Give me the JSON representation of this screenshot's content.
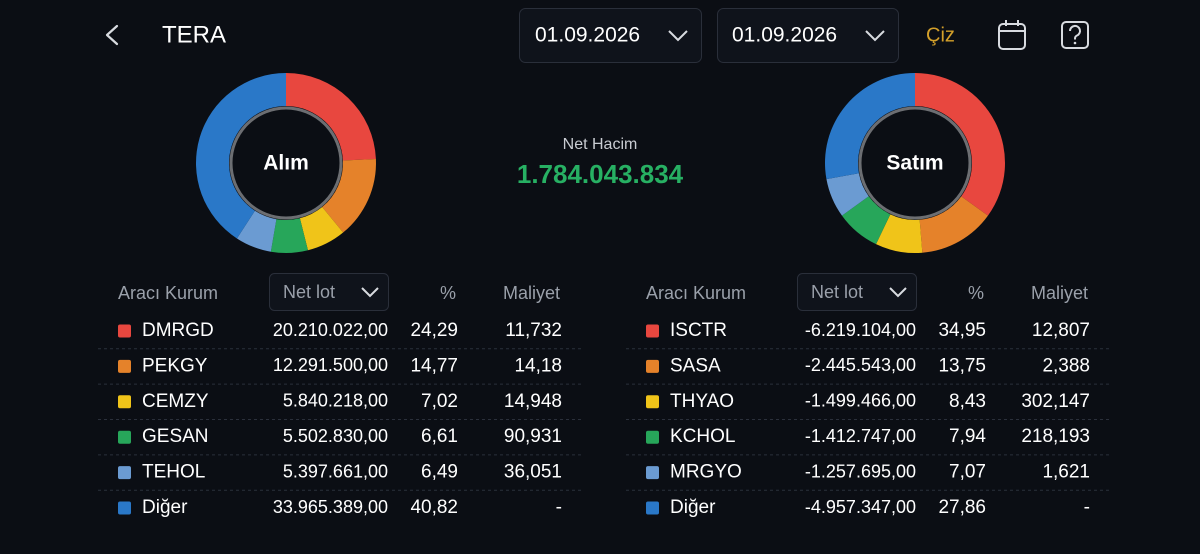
{
  "header": {
    "title": "TERA",
    "date_from": "01.09.2026",
    "date_to": "01.09.2026",
    "draw_button": "Çiz"
  },
  "summary": {
    "label": "Net Hacim",
    "value": "1.784.043.834"
  },
  "panels": [
    {
      "label": "Alım",
      "columns": [
        "Aracı Kurum",
        "Net lot",
        "%",
        "Maliyet"
      ],
      "rows": [
        {
          "name": "DMRGD",
          "color": "#e8473f",
          "lot": "20.210.022,00",
          "pct": "24,29",
          "cost": "11,732"
        },
        {
          "name": "PEKGY",
          "color": "#e5822a",
          "lot": "12.291.500,00",
          "pct": "14,77",
          "cost": "14,18"
        },
        {
          "name": "CEMZY",
          "color": "#f0c419",
          "lot": "5.840.218,00",
          "pct": "7,02",
          "cost": "14,948"
        },
        {
          "name": "GESAN",
          "color": "#27a65a",
          "lot": "5.502.830,00",
          "pct": "6,61",
          "cost": "90,931"
        },
        {
          "name": "TEHOL",
          "color": "#6b9bd2",
          "lot": "5.397.661,00",
          "pct": "6,49",
          "cost": "36,051"
        },
        {
          "name": "Diğer",
          "color": "#2a78c8",
          "lot": "33.965.389,00",
          "pct": "40,82",
          "cost": "-"
        }
      ]
    },
    {
      "label": "Satım",
      "columns": [
        "Aracı Kurum",
        "Net lot",
        "%",
        "Maliyet"
      ],
      "rows": [
        {
          "name": "ISCTR",
          "color": "#e8473f",
          "lot": "-6.219.104,00",
          "pct": "34,95",
          "cost": "12,807"
        },
        {
          "name": "SASA",
          "color": "#e5822a",
          "lot": "-2.445.543,00",
          "pct": "13,75",
          "cost": "2,388"
        },
        {
          "name": "THYAO",
          "color": "#f0c419",
          "lot": "-1.499.466,00",
          "pct": "8,43",
          "cost": "302,147"
        },
        {
          "name": "KCHOL",
          "color": "#27a65a",
          "lot": "-1.412.747,00",
          "pct": "7,94",
          "cost": "218,193"
        },
        {
          "name": "MRGYO",
          "color": "#6b9bd2",
          "lot": "-1.257.695,00",
          "pct": "7,07",
          "cost": "1,621"
        },
        {
          "name": "Diğer",
          "color": "#2a78c8",
          "lot": "-4.957.347,00",
          "pct": "27,86",
          "cost": "-"
        }
      ]
    }
  ]
}
